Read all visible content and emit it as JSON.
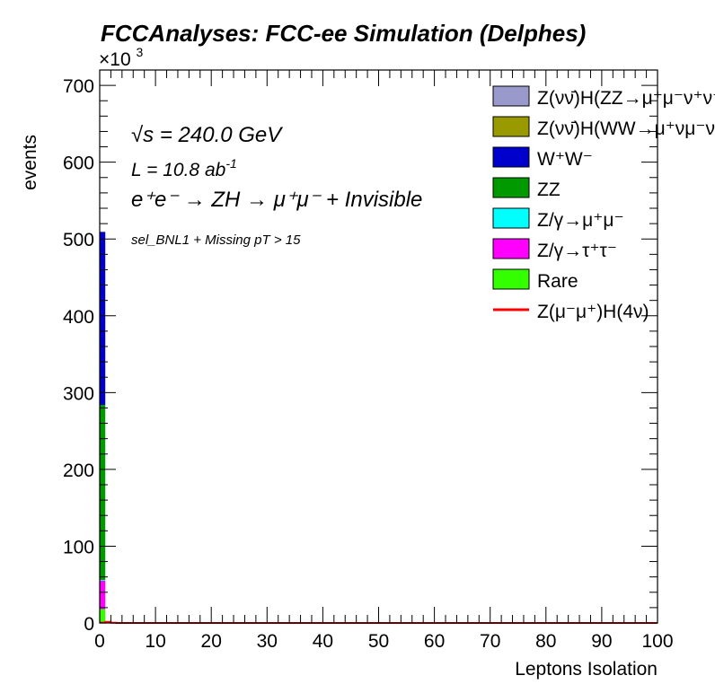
{
  "chart_data": {
    "type": "bar",
    "stacked": true,
    "title": "FCCAnalyses: FCC-ee Simulation (Delphes)",
    "xlabel": "Leptons Isolation",
    "ylabel": "events",
    "y_multiplier_label": "×10",
    "y_multiplier_exponent": "3",
    "xlim": [
      0,
      100
    ],
    "ylim": [
      0,
      720000
    ],
    "x_ticks": [
      "0",
      "10",
      "20",
      "30",
      "40",
      "50",
      "60",
      "70",
      "80",
      "90",
      "100"
    ],
    "y_ticks": [
      "0",
      "100",
      "200",
      "300",
      "400",
      "500",
      "600",
      "700"
    ],
    "bins": [
      [
        0,
        1
      ],
      [
        1,
        2
      ],
      [
        2,
        3
      ]
    ],
    "series": [
      {
        "name": "Z(νν̄)H(ZZ→μ⁺μ⁻ν⁺ν⁻)",
        "color": "#9999cc",
        "values": [
          200,
          0,
          0
        ]
      },
      {
        "name": "Z(νν̄)H(WW→μ⁺νμ⁻ν)",
        "color": "#999900",
        "values": [
          500,
          0,
          0
        ]
      },
      {
        "name": "W⁺W⁻",
        "color": "#0000cc",
        "values": [
          225000,
          600,
          0
        ]
      },
      {
        "name": "ZZ",
        "color": "#009900",
        "values": [
          228000,
          300,
          0
        ]
      },
      {
        "name": "Z/γ→μ⁺μ⁻",
        "color": "#00ffff",
        "values": [
          1000,
          0,
          0
        ]
      },
      {
        "name": "Z/γ→τ⁺τ⁻",
        "color": "#ff00ff",
        "values": [
          37000,
          100,
          0
        ]
      },
      {
        "name": "Rare",
        "color": "#33ff00",
        "values": [
          18000,
          100,
          0
        ]
      }
    ],
    "signal": {
      "name": "Z(μ⁻μ⁺)H(4ν)",
      "color": "#ff0000",
      "x": [
        0,
        1,
        2,
        3,
        100
      ],
      "values": [
        400,
        1500,
        300,
        0,
        0
      ]
    },
    "annotations": {
      "sqrt_symbol": "√",
      "sqrt_s": "s = 240.0 GeV",
      "lumi_prefix": "L = 10.8 ab",
      "lumi_exp": "-1",
      "process": "e⁺e⁻ → ZH → μ⁺μ⁻ + Invisible",
      "selection": "sel_BNL1 + Missing pT > 15"
    },
    "legend_placement": "top-right",
    "grid": false
  }
}
